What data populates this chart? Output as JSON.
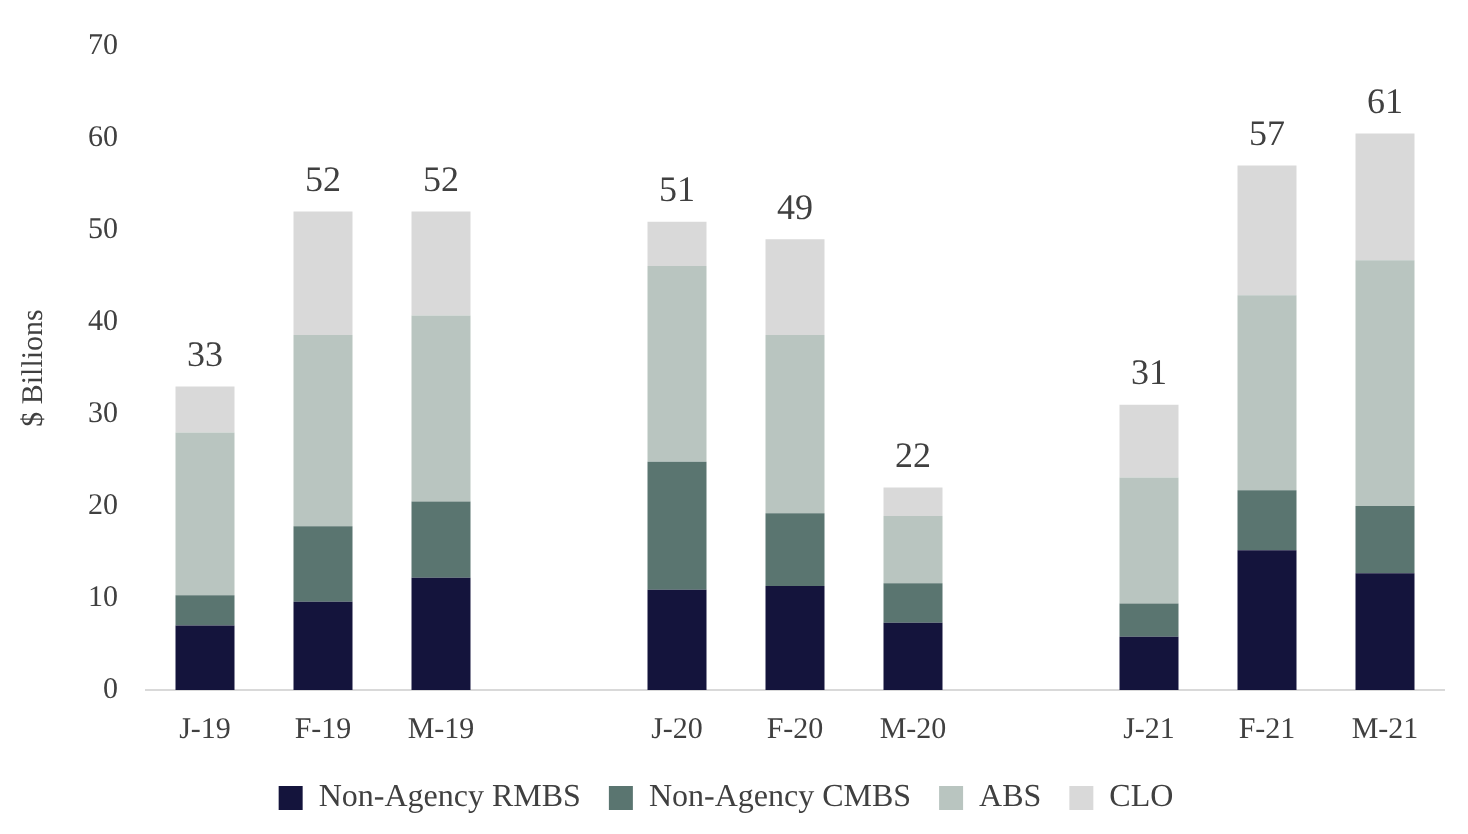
{
  "chart_data": {
    "type": "bar",
    "stacked": true,
    "ylabel": "$ Billions",
    "categories": [
      "J-19",
      "F-19",
      "M-19",
      null,
      "J-20",
      "F-20",
      "M-20",
      null,
      "J-21",
      "F-21",
      "M-21"
    ],
    "series": [
      {
        "name": "Non-Agency RMBS",
        "color": "#14143c",
        "values": [
          7,
          9.6,
          12.2,
          null,
          10.9,
          11.3,
          7.3,
          null,
          5.8,
          15.2,
          12.7
        ]
      },
      {
        "name": "Non-Agency CMBS",
        "color": "#5a7570",
        "values": [
          3.3,
          8.2,
          8.3,
          null,
          13.9,
          7.9,
          4.3,
          null,
          3.6,
          6.5,
          7.3
        ]
      },
      {
        "name": "ABS",
        "color": "#b9c5c0",
        "values": [
          17.7,
          20.8,
          20.2,
          null,
          21.3,
          19.4,
          7.3,
          null,
          13.7,
          21.2,
          26.7
        ]
      },
      {
        "name": "CLO",
        "color": "#d9d9d9",
        "values": [
          5,
          13.4,
          11.3,
          null,
          4.8,
          10.4,
          3.1,
          null,
          7.9,
          14.1,
          13.8
        ]
      }
    ],
    "totals": [
      "33",
      "52",
      "52",
      null,
      "51",
      "49",
      "22",
      null,
      "31",
      "57",
      "61"
    ],
    "ylim": [
      0,
      70
    ],
    "yticks": [
      0,
      10,
      20,
      30,
      40,
      50,
      60,
      70
    ],
    "grid": false,
    "legend": "bottom"
  }
}
